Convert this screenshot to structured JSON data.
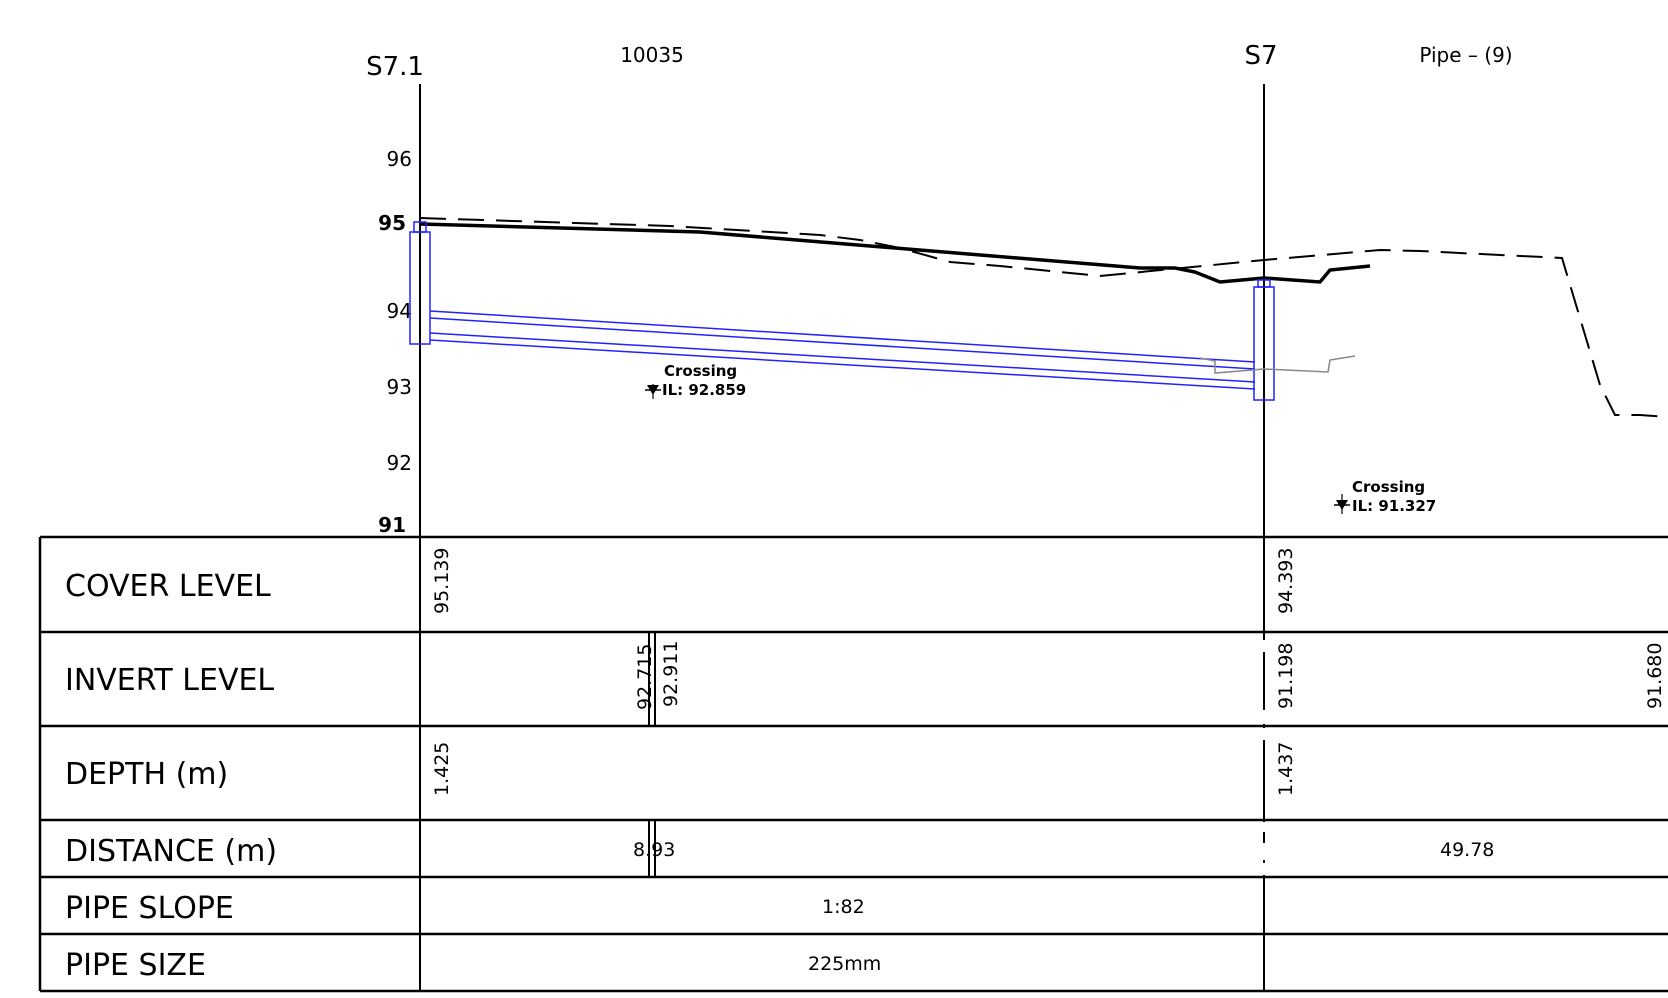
{
  "header": {
    "start_manhole": "S7.1",
    "chainage": "10035",
    "end_manhole": "S7",
    "pipe_ref": "Pipe – (9)"
  },
  "level_axis": {
    "ticks": [
      {
        "value": 96,
        "label": "96",
        "bold": false
      },
      {
        "value": 95,
        "label": "95",
        "bold": true
      },
      {
        "value": 94,
        "label": "94",
        "bold": false
      },
      {
        "value": 93,
        "label": "93",
        "bold": false
      },
      {
        "value": 92,
        "label": "92",
        "bold": false
      },
      {
        "value": 91,
        "label": "91",
        "bold": true
      }
    ]
  },
  "annotations": [
    {
      "id": "crossing-1",
      "title": "Crossing",
      "il": "IL:  92.859"
    },
    {
      "id": "crossing-2",
      "title": "Crossing",
      "il": "IL:  91.327"
    }
  ],
  "table": {
    "rows": [
      {
        "id": "cover-level",
        "label": "COVER LEVEL"
      },
      {
        "id": "invert-level",
        "label": "INVERT LEVEL"
      },
      {
        "id": "depth",
        "label": "DEPTH (m)"
      },
      {
        "id": "distance",
        "label": "DISTANCE (m)"
      },
      {
        "id": "pipe-slope",
        "label": "PIPE SLOPE"
      },
      {
        "id": "pipe-size",
        "label": "PIPE SIZE"
      }
    ],
    "cover_level": {
      "s7_1": "95.139",
      "s7": "94.393"
    },
    "invert_level": {
      "crossing_a": "92.715",
      "crossing_b": "92.911",
      "s7": "91.198",
      "next": "91.680"
    },
    "depth": {
      "s7_1": "1.425",
      "s7": "1.437"
    },
    "distance": {
      "crossing": "8.93",
      "next_span": "49.78"
    },
    "pipe_slope": {
      "span": "1:82"
    },
    "pipe_size": {
      "span": "225mm"
    }
  },
  "colors": {
    "line": "#000000",
    "pipe": "#2222ff",
    "service": "#888888"
  }
}
